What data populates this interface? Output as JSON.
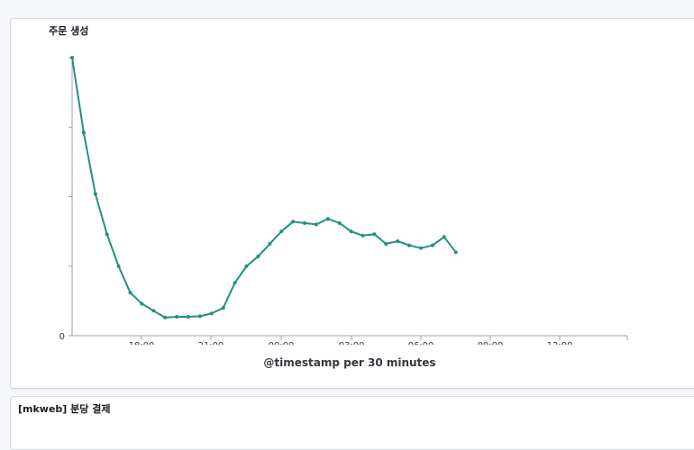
{
  "panels": [
    {
      "title": "주문 생성"
    },
    {
      "title": "[mkweb] 분당 결제"
    }
  ],
  "chart_data": {
    "type": "line",
    "title": "주문 생성",
    "xlabel": "@timestamp per 30 minutes",
    "ylabel": "",
    "y_tick_labels": [
      "0"
    ],
    "x_tick_labels": [
      "18:00",
      "21:00",
      "00:00",
      "03:00",
      "06:00",
      "09:00",
      "12:00"
    ],
    "grid": false,
    "series_color": "#209280",
    "series": [
      {
        "values": [
          100,
          73,
          51,
          36.5,
          25,
          15.5,
          11.5,
          9,
          6.5,
          6.8,
          6.8,
          7,
          8,
          10,
          19,
          25,
          28.5,
          33,
          37.5,
          41,
          40.5,
          40,
          42,
          40.5,
          37.5,
          36,
          36.5,
          33,
          34,
          32.5,
          31.5,
          32.5,
          35.5,
          30
        ]
      }
    ]
  }
}
